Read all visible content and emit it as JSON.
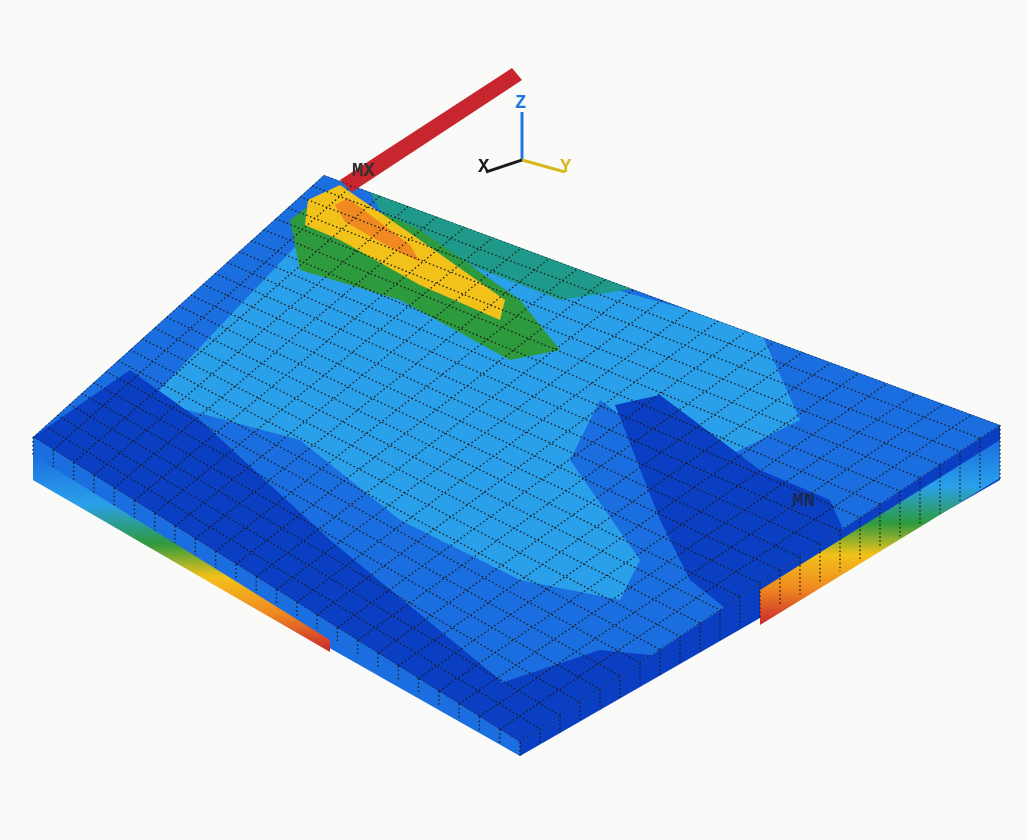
{
  "labels": {
    "max": "MX",
    "min": "MN",
    "axis_z": "Z",
    "axis_x": "X",
    "axis_y": "Y"
  },
  "colors": {
    "background": "#fafbf9",
    "mesh_line": "#1a1a1a",
    "contour_min": "#0a3fc4",
    "contour_2": "#1a6ee0",
    "contour_3": "#2aa0ea",
    "contour_4": "#1f9a8a",
    "contour_5": "#2e9a3e",
    "contour_6": "#f2c21a",
    "contour_7": "#f08a20",
    "contour_max": "#c8262e",
    "axis_z": "#1e78e0",
    "axis_y": "#d8b820",
    "max_label": "#303030",
    "min_label": "#1a2850"
  }
}
